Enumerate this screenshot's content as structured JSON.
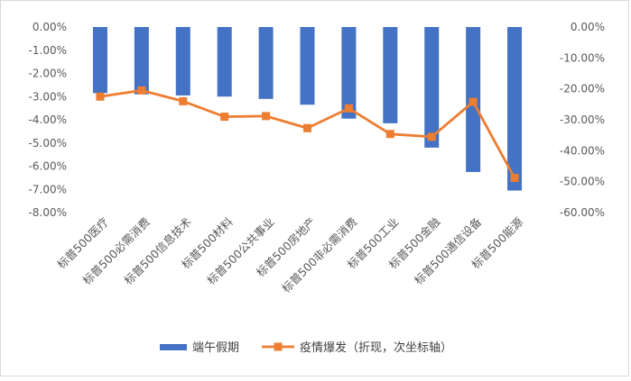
{
  "chart_data": {
    "type": "bar",
    "categories": [
      "标普500医疗",
      "标普500必需消费",
      "标普500信息技术",
      "标普500材料",
      "标普500公共事业",
      "标普500房地产",
      "标普500非必需消费",
      "标普500工业",
      "标普500金融",
      "标普500通信设备",
      "标普500能源"
    ],
    "series": [
      {
        "name": "端午假期",
        "type": "bar",
        "axis": "primary",
        "color": "#4472C4",
        "values": [
          -2.85,
          -2.9,
          -2.95,
          -3.0,
          -3.1,
          -3.35,
          -3.95,
          -4.15,
          -5.2,
          -6.25,
          -7.05
        ]
      },
      {
        "name": "疫情爆发（折现，次坐标轴）",
        "type": "line",
        "axis": "secondary",
        "color": "#ED7D31",
        "marker": "square",
        "values": [
          -22.5,
          -20.5,
          -24.0,
          -29.0,
          -28.8,
          -32.7,
          -26.3,
          -34.6,
          -35.5,
          -24.2,
          -48.8
        ]
      }
    ],
    "y_primary": {
      "min": -8,
      "max": 0,
      "step": 1,
      "tick_labels": [
        "0.00%",
        "-1.00%",
        "-2.00%",
        "-3.00%",
        "-4.00%",
        "-5.00%",
        "-6.00%",
        "-7.00%",
        "-8.00%"
      ]
    },
    "y_secondary": {
      "min": -60,
      "max": 0,
      "step": 10,
      "tick_labels": [
        "0.00%",
        "-10.00%",
        "-20.00%",
        "-30.00%",
        "-40.00%",
        "-50.00%",
        "-60.00%"
      ]
    },
    "grid": false,
    "legend_position": "bottom"
  }
}
